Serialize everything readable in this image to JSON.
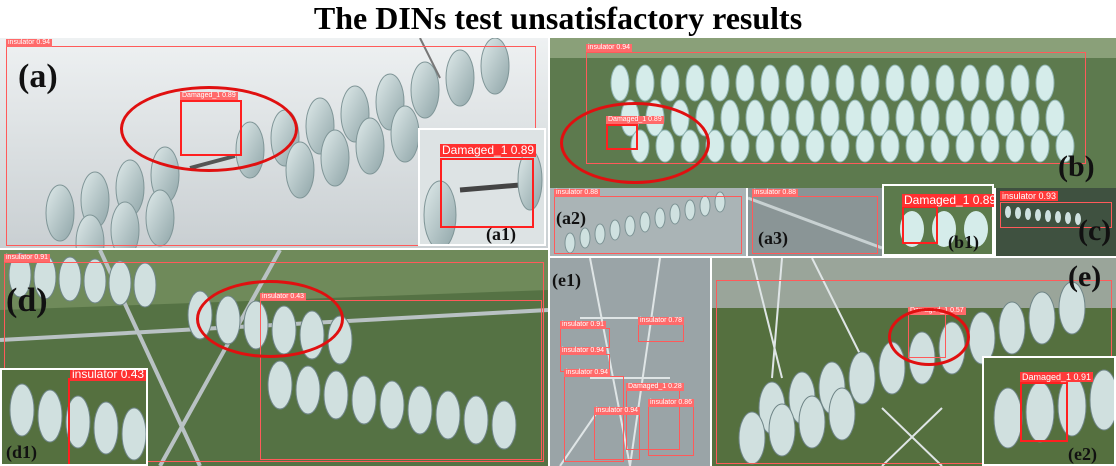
{
  "title": "The DINs test unsatisfactory results",
  "panels": {
    "a": "(a)",
    "a1": "(a1)",
    "a2": "(a2)",
    "a3": "(a3)",
    "b": "(b)",
    "b1": "(b1)",
    "c": "(c)",
    "d": "(d)",
    "d1": "(d1)",
    "e": "(e)",
    "e1": "(e1)",
    "e2": "(e2)"
  },
  "detections": {
    "a_insulator": "insulator 0.94",
    "a_damaged": "Damaged_1 0.89",
    "a1_damaged": "Damaged_1 0.89",
    "b_insulator": "insulator 0.94",
    "b_damaged": "Damaged_1 0.89",
    "a2_insulator": "insulator 0.88",
    "a3_insulator": "insulator 0.88",
    "b1_damaged": "Damaged_1 0.89",
    "c_insulator": "insulator 0.93",
    "d_insulator_top": "insulator 0.91",
    "d_insulator_mid": "insulator 0.43",
    "d1_insulator": "insulator 0.43",
    "e1_ins1": "insulator 0.91",
    "e1_ins2": "insulator 0.78",
    "e1_ins3": "insulator 0.94",
    "e1_ins4": "insulator 0.94",
    "e1_dmg": "Damaged_1 0.28",
    "e1_ins5": "insulator 0.94",
    "e1_ins6": "insulator 0.86",
    "e_damaged": "Damaged_1 0.57",
    "e2_damaged": "Damaged_1 0.91"
  }
}
